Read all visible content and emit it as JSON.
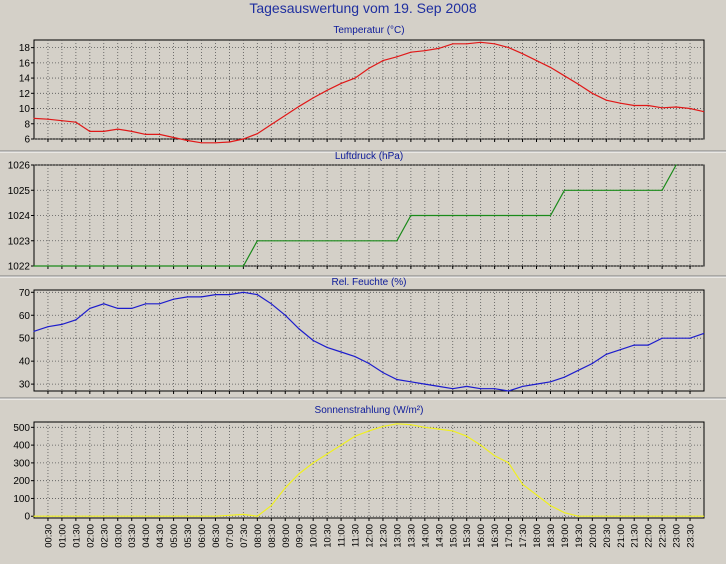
{
  "page": {
    "title": "Tagesauswertung vom 19. Sep 2008"
  },
  "chart_data": {
    "x_labels": [
      "00:30",
      "01:00",
      "01:30",
      "02:00",
      "02:30",
      "03:00",
      "03:30",
      "04:00",
      "04:30",
      "05:00",
      "05:30",
      "06:00",
      "06:30",
      "07:00",
      "07:30",
      "08:00",
      "08:30",
      "09:00",
      "09:30",
      "10:00",
      "10:30",
      "11:00",
      "11:30",
      "12:00",
      "12:30",
      "13:00",
      "13:30",
      "14:00",
      "14:30",
      "15:00",
      "15:30",
      "16:00",
      "16:30",
      "17:00",
      "17:30",
      "18:00",
      "18:30",
      "19:00",
      "19:30",
      "20:00",
      "20:30",
      "21:00",
      "21:30",
      "22:00",
      "22:30",
      "23:00",
      "23:30"
    ],
    "panels": [
      {
        "type": "line",
        "title": "Temperatur (°C)",
        "color": "#e01818",
        "ylim": [
          6,
          19
        ],
        "yticks": [
          6,
          8,
          10,
          12,
          14,
          16,
          18
        ],
        "x": [
          "00:00",
          "00:30",
          "01:00",
          "01:30",
          "02:00",
          "02:30",
          "03:00",
          "03:30",
          "04:00",
          "04:30",
          "05:00",
          "05:30",
          "06:00",
          "06:30",
          "07:00",
          "07:30",
          "08:00",
          "08:30",
          "09:00",
          "09:30",
          "10:00",
          "10:30",
          "11:00",
          "11:30",
          "12:00",
          "12:30",
          "13:00",
          "13:30",
          "14:00",
          "14:30",
          "15:00",
          "15:30",
          "16:00",
          "16:30",
          "17:00",
          "17:30",
          "18:00",
          "18:30",
          "19:00",
          "19:30",
          "20:00",
          "20:30",
          "21:00",
          "21:30",
          "22:00",
          "22:30",
          "23:00",
          "23:30",
          "23:59"
        ],
        "values": [
          8.7,
          8.6,
          8.4,
          8.2,
          7.0,
          7.0,
          7.3,
          7.0,
          6.6,
          6.6,
          6.2,
          5.8,
          5.5,
          5.5,
          5.6,
          6.0,
          6.7,
          7.9,
          9.1,
          10.3,
          11.4,
          12.4,
          13.3,
          14.0,
          15.3,
          16.3,
          16.8,
          17.4,
          17.6,
          17.9,
          18.5,
          18.5,
          18.7,
          18.5,
          18.0,
          17.2,
          16.3,
          15.4,
          14.3,
          13.2,
          12.0,
          11.1,
          10.7,
          10.4,
          10.4,
          10.1,
          10.2,
          10.0,
          9.6
        ]
      },
      {
        "type": "line",
        "title": "Luftdruck (hPa)",
        "color": "#1a8a1a",
        "ylim": [
          1022,
          1026
        ],
        "yticks": [
          1022,
          1023,
          1024,
          1025,
          1026
        ],
        "x": [
          "00:00",
          "07:30",
          "08:00",
          "13:00",
          "13:30",
          "18:30",
          "19:00",
          "22:30",
          "23:00"
        ],
        "values": [
          1022,
          1022,
          1023,
          1023,
          1024,
          1024,
          1025,
          1025,
          1026
        ]
      },
      {
        "type": "line",
        "title": "Rel. Feuchte (%)",
        "color": "#1c1ccc",
        "ylim": [
          27,
          71
        ],
        "yticks": [
          30,
          40,
          50,
          60,
          70
        ],
        "x": [
          "00:00",
          "00:30",
          "01:00",
          "01:30",
          "02:00",
          "02:30",
          "03:00",
          "03:30",
          "04:00",
          "04:30",
          "05:00",
          "05:30",
          "06:00",
          "06:30",
          "07:00",
          "07:30",
          "08:00",
          "08:30",
          "09:00",
          "09:30",
          "10:00",
          "10:30",
          "11:00",
          "11:30",
          "12:00",
          "12:30",
          "13:00",
          "13:30",
          "14:00",
          "14:30",
          "15:00",
          "15:30",
          "16:00",
          "16:30",
          "17:00",
          "17:30",
          "18:00",
          "18:30",
          "19:00",
          "19:30",
          "20:00",
          "20:30",
          "21:00",
          "21:30",
          "22:00",
          "22:30",
          "23:00",
          "23:30",
          "23:59"
        ],
        "values": [
          53,
          55,
          56,
          58,
          63,
          65,
          63,
          63,
          65,
          65,
          67,
          68,
          68,
          69,
          69,
          70,
          69,
          65,
          60,
          54,
          49,
          46,
          44,
          42,
          39,
          35,
          32,
          31,
          30,
          29,
          28,
          29,
          28,
          28,
          27,
          29,
          30,
          31,
          33,
          36,
          39,
          43,
          45,
          47,
          47,
          50,
          50,
          50,
          52
        ]
      },
      {
        "type": "line",
        "title": "Sonnenstrahlung (W/m²)",
        "color": "#f0f020",
        "ylim": [
          -10,
          530
        ],
        "yticks": [
          0,
          100,
          200,
          300,
          400,
          500
        ],
        "x": [
          "00:00",
          "06:30",
          "07:00",
          "07:30",
          "08:00",
          "08:30",
          "09:00",
          "09:30",
          "10:00",
          "10:30",
          "11:00",
          "11:30",
          "12:00",
          "12:30",
          "13:00",
          "13:30",
          "14:00",
          "14:30",
          "15:00",
          "15:30",
          "16:00",
          "16:30",
          "17:00",
          "17:30",
          "18:00",
          "18:30",
          "19:00",
          "19:30",
          "20:00",
          "23:59"
        ],
        "values": [
          0,
          0,
          5,
          10,
          0,
          60,
          160,
          240,
          300,
          350,
          400,
          450,
          480,
          505,
          520,
          515,
          500,
          490,
          480,
          450,
          400,
          340,
          300,
          180,
          120,
          60,
          20,
          0,
          0,
          0
        ]
      }
    ]
  }
}
